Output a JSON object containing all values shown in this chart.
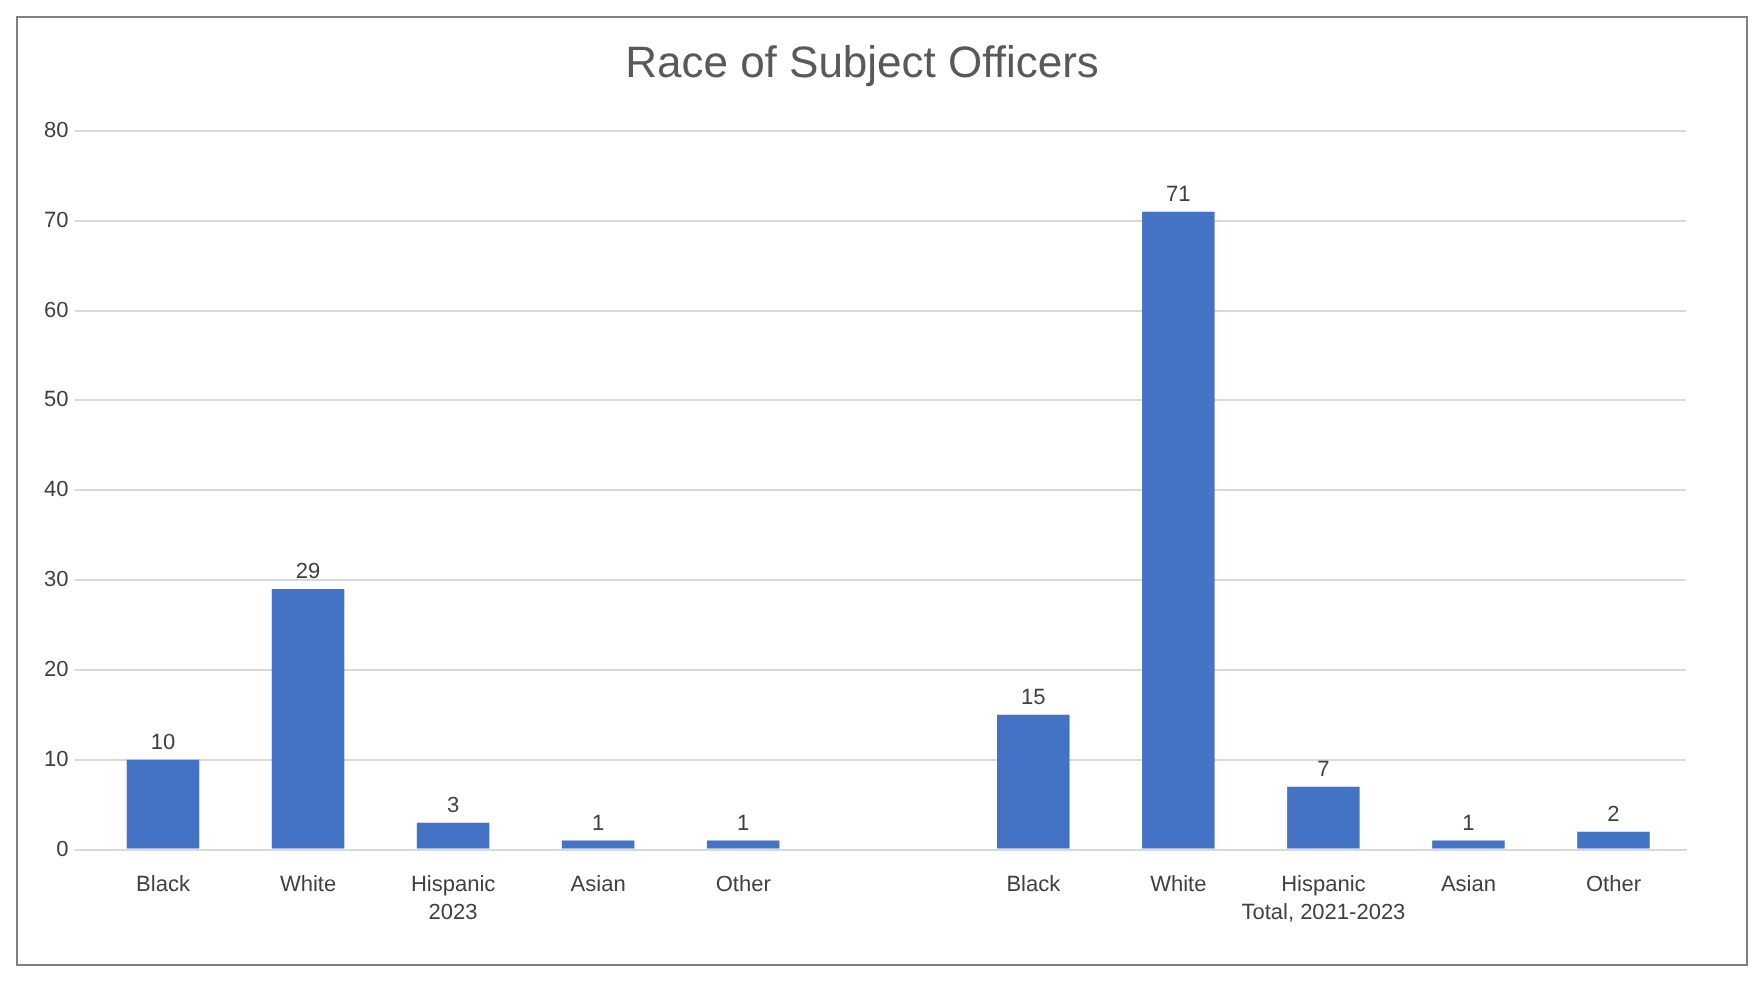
{
  "chart_data": {
    "type": "bar",
    "title": "Race of Subject Officers",
    "categories": [
      "Black",
      "White",
      "Hispanic",
      "Asian",
      "Other",
      null,
      "Black",
      "White",
      "Hispanic",
      "Asian",
      "Other"
    ],
    "values": [
      10,
      29,
      3,
      1,
      1,
      null,
      15,
      71,
      7,
      1,
      2
    ],
    "color": "#4472c4",
    "ylim": [
      0,
      80
    ],
    "yticks": [
      0,
      10,
      20,
      30,
      40,
      50,
      60,
      70,
      80
    ],
    "grid": "y",
    "legend": false,
    "data_labels": true,
    "annotations": [
      "2023",
      "Total, 2021-2023"
    ]
  }
}
